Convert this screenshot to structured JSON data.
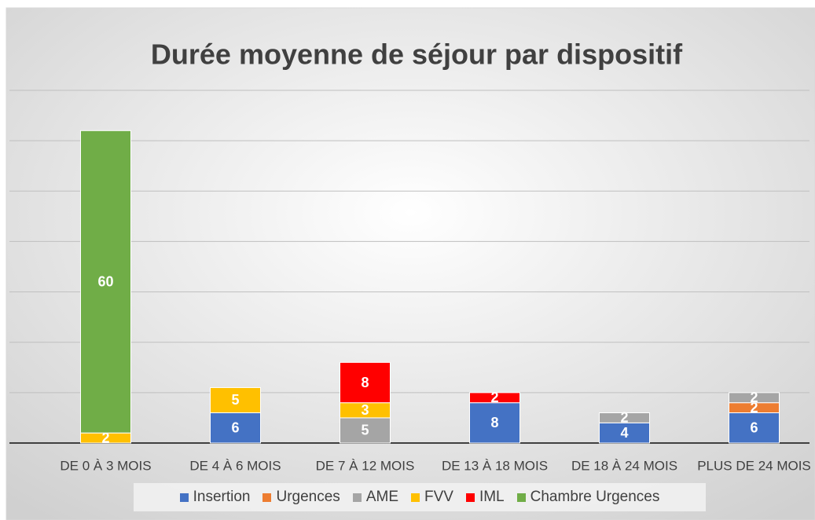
{
  "chart_data": {
    "type": "stacked_bar",
    "title": "Durée moyenne de séjour par dispositif",
    "categories": [
      "DE 0 À 3 MOIS",
      "DE 4 À 6 MOIS",
      "DE 7 À 12 MOIS",
      "DE 13 À 18 MOIS",
      "DE 18 À 24 MOIS",
      "PLUS DE 24 MOIS"
    ],
    "series": [
      {
        "name": "Insertion",
        "color": "#4472c4",
        "values": [
          null,
          6,
          null,
          8,
          4,
          6
        ]
      },
      {
        "name": "Urgences",
        "color": "#ed7d31",
        "values": [
          null,
          null,
          null,
          null,
          null,
          2
        ]
      },
      {
        "name": "AME",
        "color": "#a5a5a5",
        "values": [
          null,
          null,
          5,
          null,
          2,
          2
        ]
      },
      {
        "name": "FVV",
        "color": "#ffc000",
        "values": [
          2,
          5,
          3,
          null,
          null,
          null
        ]
      },
      {
        "name": "IML",
        "color": "#ff0000",
        "values": [
          null,
          null,
          8,
          2,
          null,
          null
        ]
      },
      {
        "name": "Chambre Urgences",
        "color": "#70ad47",
        "values": [
          60,
          null,
          null,
          null,
          null,
          null
        ]
      }
    ],
    "ylim": [
      0,
      70
    ],
    "yticks": [
      0,
      10,
      20,
      30,
      40,
      50,
      60,
      70
    ],
    "show_ytick_labels": false,
    "grid": true,
    "legend": "bottom"
  }
}
